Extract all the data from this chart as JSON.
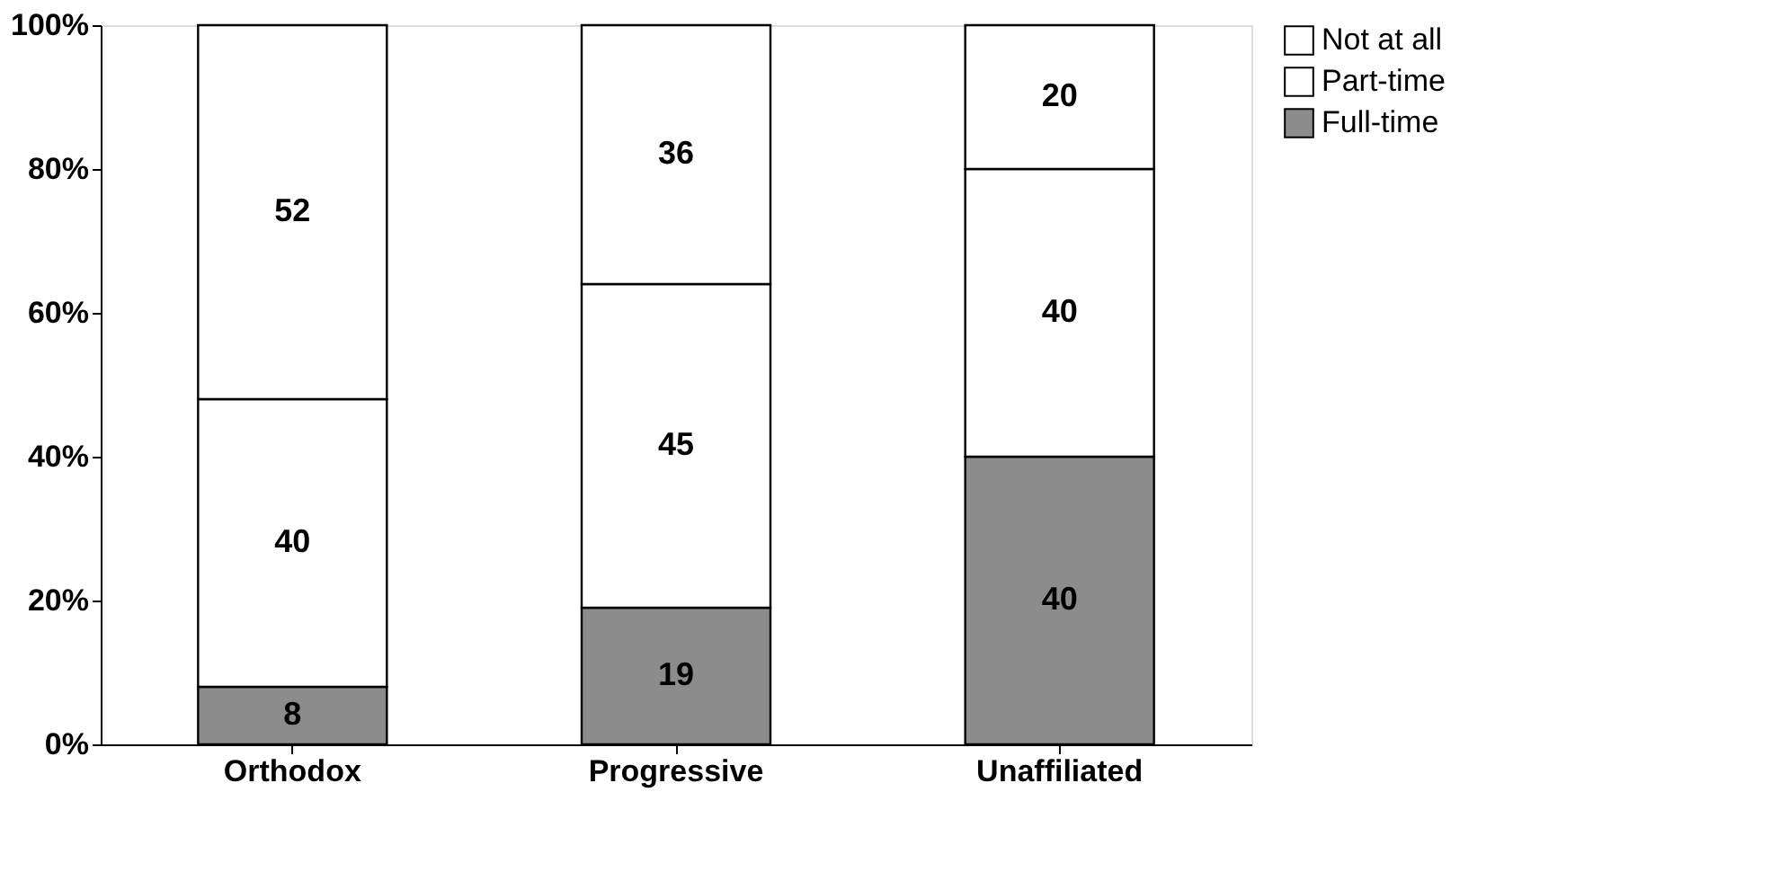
{
  "chart_data": {
    "type": "bar",
    "stacked": true,
    "categories": [
      "Orthodox",
      "Progressive",
      "Unaffiliated"
    ],
    "series": [
      {
        "name": "Full-time",
        "color": "#8c8c8c",
        "values": [
          8,
          19,
          40
        ]
      },
      {
        "name": "Part-time",
        "color": "#ffffff",
        "values": [
          40,
          45,
          40
        ]
      },
      {
        "name": "Not at all",
        "color": "#ffffff",
        "values": [
          52,
          36,
          20
        ]
      }
    ],
    "ylim": [
      0,
      100
    ],
    "yticks": [
      {
        "value": 0,
        "label": "0%"
      },
      {
        "value": 20,
        "label": "20%"
      },
      {
        "value": 40,
        "label": "40%"
      },
      {
        "value": 60,
        "label": "60%"
      },
      {
        "value": 80,
        "label": "80%"
      },
      {
        "value": 100,
        "label": "100%"
      }
    ],
    "data_labels": true,
    "grid": false,
    "legend": "right"
  }
}
